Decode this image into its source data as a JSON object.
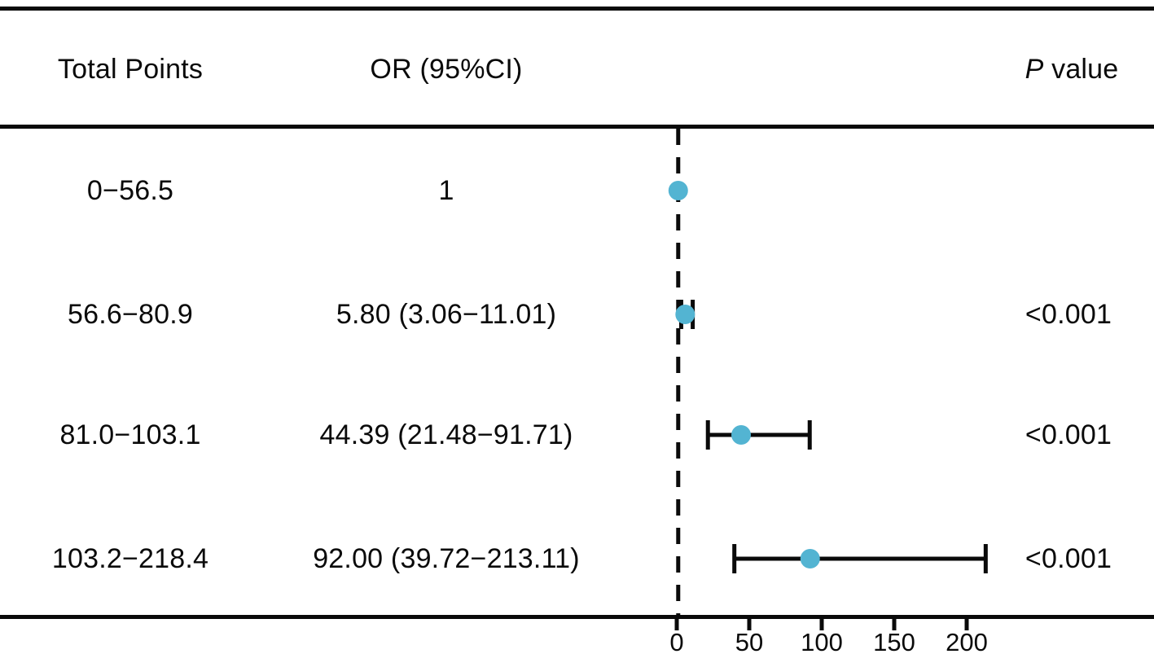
{
  "figure": {
    "headers": {
      "points": "Total Points",
      "or": "OR (95%CI)",
      "p_italic": "P",
      "p_rest": " value"
    },
    "rows": [
      {
        "points": "0−56.5",
        "or_text": "1",
        "p": ""
      },
      {
        "points": "56.6−80.9",
        "or_text": "5.80 (3.06−11.01)",
        "p": "<0.001"
      },
      {
        "points": "81.0−103.1",
        "or_text": "44.39 (21.48−91.71)",
        "p": "<0.001"
      },
      {
        "points": "103.2−218.4",
        "or_text": "92.00 (39.72−213.11)",
        "p": "<0.001"
      }
    ]
  },
  "chart_data": {
    "type": "scatter",
    "subtype": "forest-plot",
    "title": "",
    "xlabel": "",
    "x_ticks": [
      0,
      50,
      100,
      150,
      200
    ],
    "xlim": [
      0,
      240
    ],
    "grid": false,
    "legend_position": "none",
    "reference_line_x": 1,
    "point_color": "#53B4D2",
    "line_color": "#0a0a0a",
    "rows": [
      {
        "label": "0−56.5",
        "or": 1.0,
        "ci_low": null,
        "ci_high": null,
        "p_value": null,
        "reference": true
      },
      {
        "label": "56.6−80.9",
        "or": 5.8,
        "ci_low": 3.06,
        "ci_high": 11.01,
        "p_value": "<0.001",
        "reference": false
      },
      {
        "label": "81.0−103.1",
        "or": 44.39,
        "ci_low": 21.48,
        "ci_high": 91.71,
        "p_value": "<0.001",
        "reference": false
      },
      {
        "label": "103.2−218.4",
        "or": 92.0,
        "ci_low": 39.72,
        "ci_high": 213.11,
        "p_value": "<0.001",
        "reference": false
      }
    ]
  }
}
